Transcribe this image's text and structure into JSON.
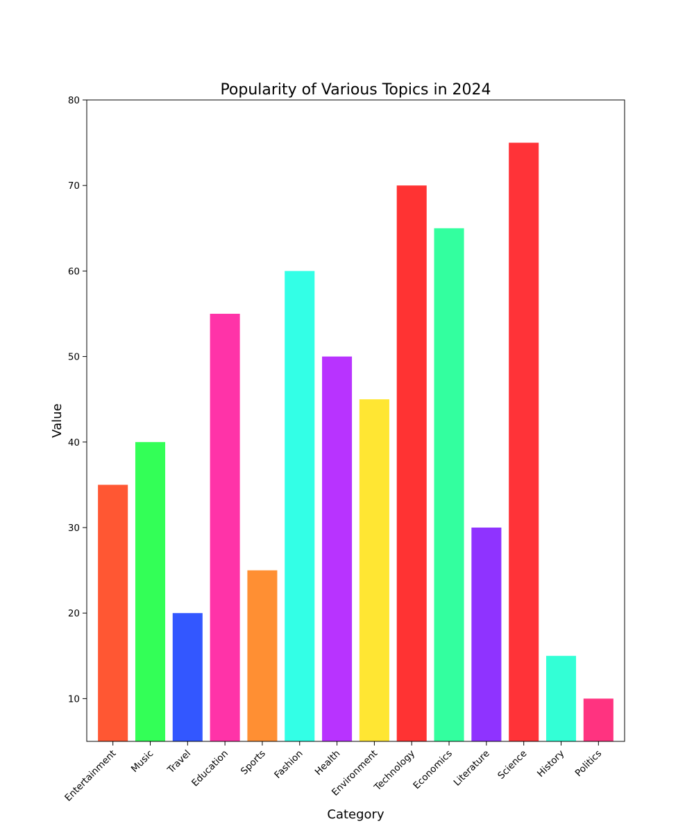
{
  "chart_data": {
    "type": "bar",
    "title": "Popularity of Various Topics in 2024",
    "xlabel": "Category",
    "ylabel": "Value",
    "ylim": [
      5,
      80
    ],
    "yticks": [
      10,
      20,
      30,
      40,
      50,
      60,
      70,
      80
    ],
    "grid": false,
    "categories": [
      "Entertainment",
      "Music",
      "Travel",
      "Education",
      "Sports",
      "Fashion",
      "Health",
      "Environment",
      "Technology",
      "Economics",
      "Literature",
      "Science",
      "History",
      "Politics"
    ],
    "values": [
      35,
      40,
      20,
      55,
      25,
      60,
      50,
      45,
      70,
      65,
      30,
      75,
      15,
      10
    ],
    "colors": [
      "#ff5733",
      "#33ff57",
      "#3357ff",
      "#ff33a8",
      "#ff8f33",
      "#33ffe6",
      "#b833ff",
      "#ffe633",
      "#ff3333",
      "#33ff9f",
      "#8f33ff",
      "#ff3338",
      "#33ffd6",
      "#ff3380"
    ]
  }
}
